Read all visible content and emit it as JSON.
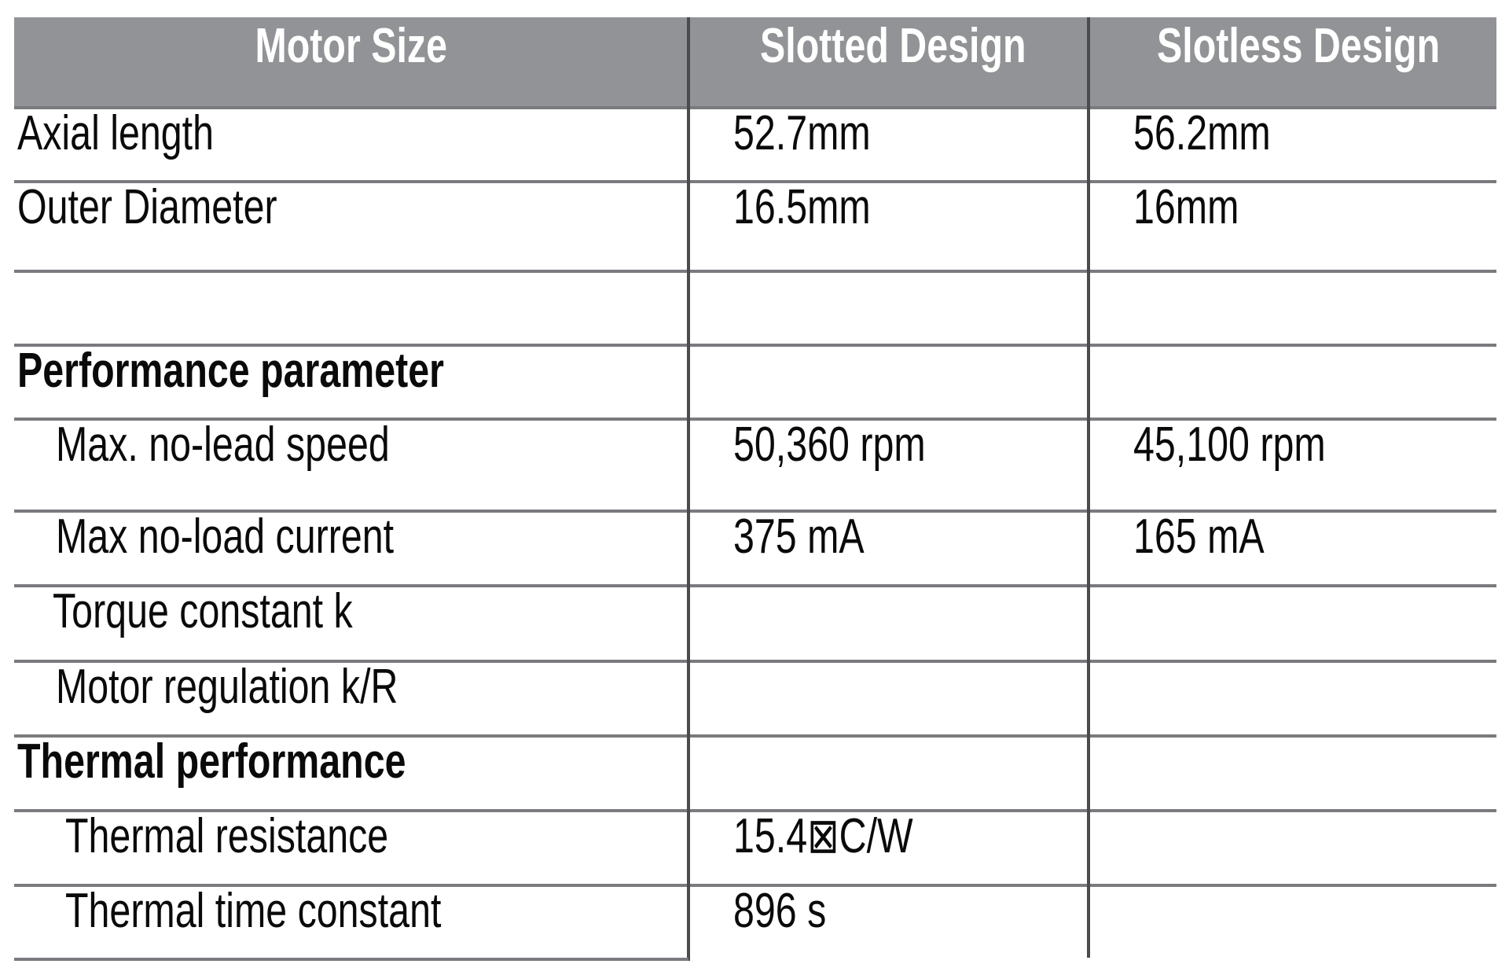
{
  "header": {
    "col1": "Motor Size",
    "col2": "Slotted Design",
    "col3": "Slotless Design"
  },
  "rows": [
    {
      "label": "Axial length",
      "slotted": "52.7mm",
      "slotless": "56.2mm",
      "bold": false,
      "indent": 0
    },
    {
      "label": "Outer Diameter",
      "slotted": "16.5mm",
      "slotless": "16mm",
      "bold": false,
      "indent": 0
    },
    {
      "label": "",
      "slotted": "",
      "slotless": "",
      "bold": false,
      "indent": 0
    },
    {
      "label": "Performance parameter",
      "slotted": "",
      "slotless": "",
      "bold": true,
      "indent": 0
    },
    {
      "label": "Max. no-lead speed",
      "slotted": "50,360 rpm",
      "slotless": "45,100 rpm",
      "bold": false,
      "indent": 1
    },
    {
      "label": "Max no-load current",
      "slotted": "375 mA",
      "slotless": "165 mA",
      "bold": false,
      "indent": 1
    },
    {
      "label": "Torque constant k",
      "slotted": "",
      "slotless": "",
      "bold": false,
      "indent": 1
    },
    {
      "label": "Motor regulation k/R",
      "slotted": "",
      "slotless": "",
      "bold": false,
      "indent": 1
    },
    {
      "label": "Thermal performance",
      "slotted": "",
      "slotless": "",
      "bold": true,
      "indent": 0
    },
    {
      "label": "Thermal resistance",
      "slotted": "15.4⊠C/W",
      "slotless": "",
      "bold": false,
      "indent": 2
    },
    {
      "label": "Thermal time constant",
      "slotted": "896 s",
      "slotless": "",
      "bold": false,
      "indent": 2
    }
  ],
  "colors": {
    "header_bg": "#929396",
    "header_text": "#ffffff",
    "rule": "#7a7b7e"
  }
}
